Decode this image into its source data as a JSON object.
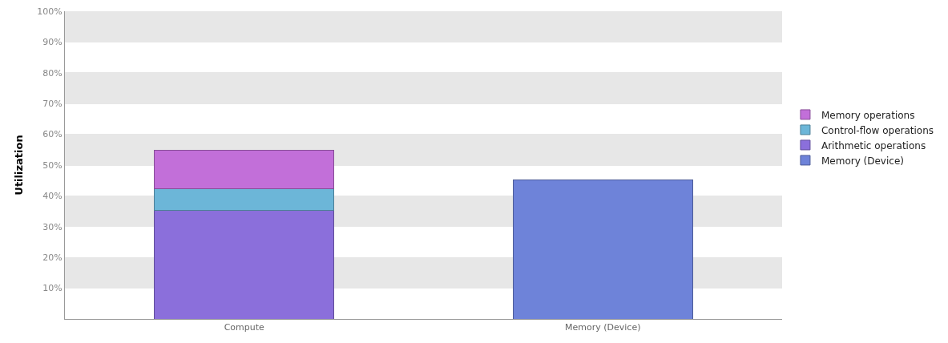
{
  "chart_data": {
    "type": "bar",
    "ylabel": "Utilization",
    "stacked": true,
    "grid": true,
    "legend": "right",
    "categories": [
      "Compute",
      "Memory (Device)"
    ],
    "series": [
      {
        "name": "Arithmetic operations",
        "color": "#8b6fdb",
        "values": [
          35.2,
          null
        ]
      },
      {
        "name": "Control-flow operations",
        "color": "#6cb6d8",
        "values": [
          7.2,
          null
        ]
      },
      {
        "name": "Memory operations",
        "color": "#c26fd9",
        "values": [
          12.3,
          null
        ]
      },
      {
        "name": "Memory (Device)",
        "color": "#6e83d9",
        "values": [
          null,
          45.1
        ]
      }
    ],
    "ylim": [
      0,
      100
    ],
    "yticks": [
      {
        "value": 0,
        "label": null
      },
      {
        "value": 10,
        "label": "10%"
      },
      {
        "value": 20,
        "label": "20%"
      },
      {
        "value": 30,
        "label": "30%"
      },
      {
        "value": 40,
        "label": "40%"
      },
      {
        "value": 50,
        "label": "50%"
      },
      {
        "value": 60,
        "label": "60%"
      },
      {
        "value": 70,
        "label": "70%"
      },
      {
        "value": 80,
        "label": "80%"
      },
      {
        "value": 90,
        "label": "90%"
      },
      {
        "value": 100,
        "label": "100%"
      }
    ]
  }
}
